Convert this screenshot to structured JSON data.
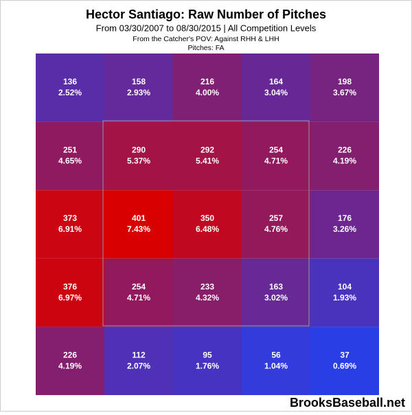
{
  "chart_data": {
    "type": "heatmap",
    "title": "Hector Santiago: Raw Number of Pitches",
    "subtitle": "From 03/30/2007 to 08/30/2015 | All Competition Levels",
    "notes": [
      "From the Catcher's POV:  Against RHH & LHH",
      "Pitches:  FA"
    ],
    "watermark": "BrooksBaseball.net",
    "counts": [
      [
        136,
        158,
        216,
        164,
        198
      ],
      [
        251,
        290,
        292,
        254,
        226
      ],
      [
        373,
        401,
        350,
        257,
        176
      ],
      [
        376,
        254,
        233,
        163,
        104
      ],
      [
        226,
        112,
        95,
        56,
        37
      ]
    ],
    "percents": [
      [
        2.52,
        2.93,
        4.0,
        3.04,
        3.67
      ],
      [
        4.65,
        5.37,
        5.41,
        4.71,
        4.19
      ],
      [
        6.91,
        7.43,
        6.48,
        4.76,
        3.26
      ],
      [
        6.97,
        4.71,
        4.32,
        3.02,
        1.93
      ],
      [
        4.19,
        2.07,
        1.76,
        1.04,
        0.69
      ]
    ],
    "percent_labels": [
      [
        "2.52%",
        "2.93%",
        "4.00%",
        "3.04%",
        "3.67%"
      ],
      [
        "4.65%",
        "5.37%",
        "5.41%",
        "4.71%",
        "4.19%"
      ],
      [
        "6.91%",
        "7.43%",
        "6.48%",
        "4.76%",
        "3.26%"
      ],
      [
        "6.97%",
        "4.71%",
        "4.32%",
        "3.02%",
        "1.93%"
      ],
      [
        "4.19%",
        "2.07%",
        "1.76%",
        "1.04%",
        "0.69%"
      ]
    ],
    "low_color": "#2a3ee6",
    "high_color": "#d80000"
  }
}
